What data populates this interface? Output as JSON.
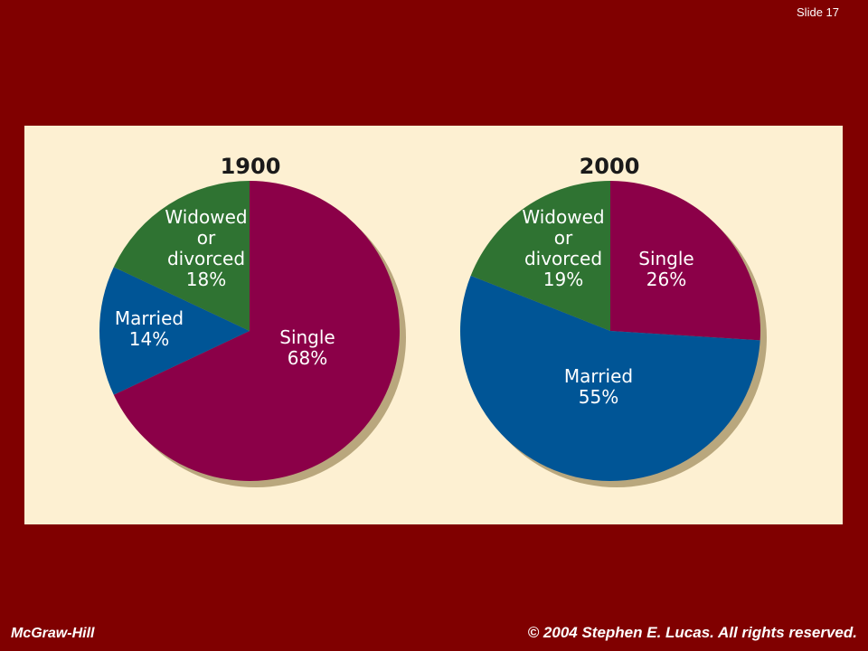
{
  "slide": {
    "number_label": "Slide 17"
  },
  "footer": {
    "publisher": "McGraw-Hill",
    "copyright": "© 2004 Stephen E. Lucas. All rights reserved."
  },
  "colors": {
    "background": "#800000",
    "panel": "#fdf0d2",
    "single": "#8b0048",
    "married": "#005596",
    "widowed": "#2f7332",
    "shadow": "#b9a77d"
  },
  "chart_data": [
    {
      "type": "pie",
      "title": "1900",
      "start_angle_deg": 0,
      "slices": [
        {
          "key": "single",
          "lines": [
            "Single",
            "68%"
          ],
          "value": 68,
          "color": "#8b0048"
        },
        {
          "key": "married",
          "lines": [
            "Married",
            "14%"
          ],
          "value": 14,
          "color": "#005596"
        },
        {
          "key": "widowed",
          "lines": [
            "Widowed",
            "or",
            "divorced",
            "18%"
          ],
          "value": 18,
          "color": "#2f7332"
        }
      ]
    },
    {
      "type": "pie",
      "title": "2000",
      "start_angle_deg": 0,
      "slices": [
        {
          "key": "single",
          "lines": [
            "Single",
            "26%"
          ],
          "value": 26,
          "color": "#8b0048"
        },
        {
          "key": "married",
          "lines": [
            "Married",
            "55%"
          ],
          "value": 55,
          "color": "#005596"
        },
        {
          "key": "widowed",
          "lines": [
            "Widowed",
            "or",
            "divorced",
            "19%"
          ],
          "value": 19,
          "color": "#2f7332"
        }
      ]
    }
  ]
}
